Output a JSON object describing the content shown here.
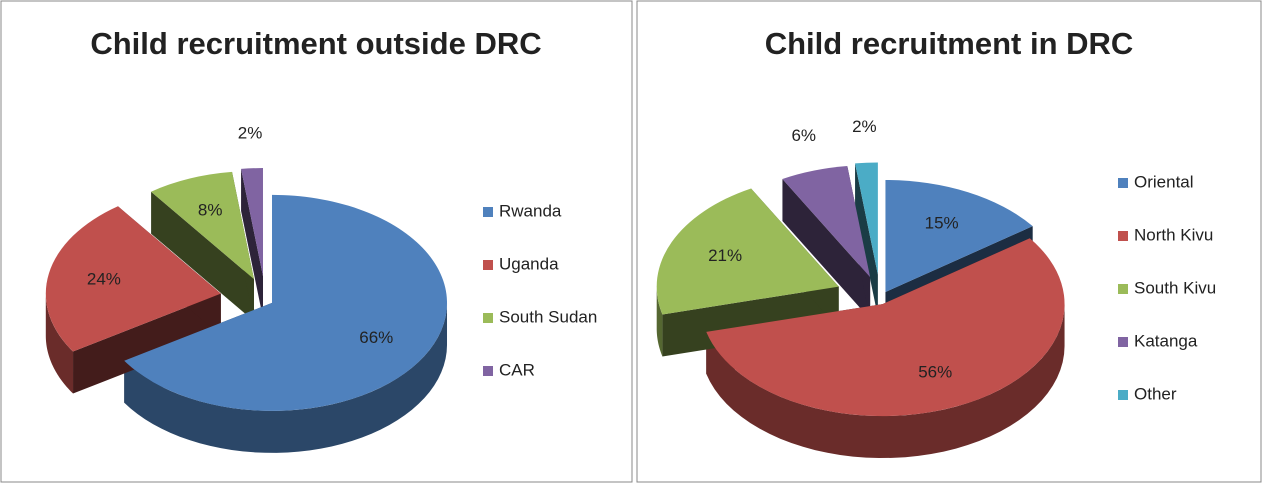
{
  "chart_data": [
    {
      "type": "pie",
      "title": "Child recruitment outside DRC",
      "categories": [
        "Rwanda",
        "Uganda",
        "South Sudan",
        "CAR"
      ],
      "values": [
        66,
        24,
        8,
        2
      ],
      "value_labels": [
        "66%",
        "24%",
        "8%",
        "2%"
      ],
      "colors": [
        "#4f81bd",
        "#c0504d",
        "#9bbb59",
        "#8064a2"
      ],
      "legend": "right"
    },
    {
      "type": "pie",
      "title": "Child recruitment in DRC",
      "categories": [
        "Oriental",
        "North Kivu",
        "South Kivu",
        "Katanga",
        "Other"
      ],
      "values": [
        15,
        56,
        21,
        6,
        2
      ],
      "value_labels": [
        "15%",
        "56%",
        "21%",
        "6%",
        "2%"
      ],
      "colors": [
        "#4f81bd",
        "#c0504d",
        "#9bbb59",
        "#8064a2",
        "#4bacc6"
      ],
      "legend": "right"
    }
  ]
}
